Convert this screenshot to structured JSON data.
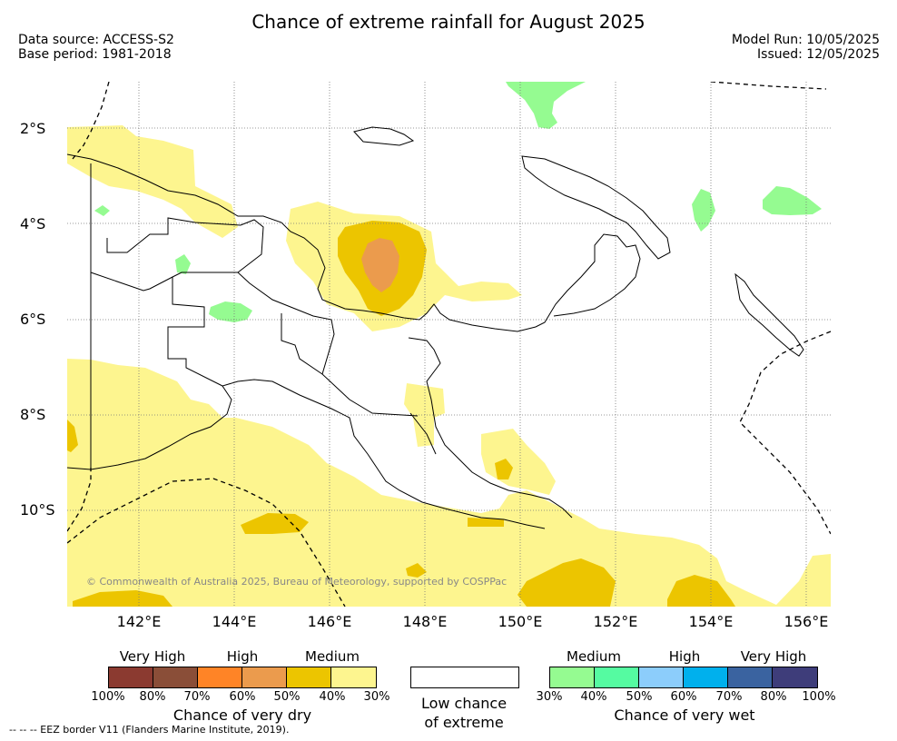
{
  "title": "Chance of extreme rainfall for August 2025",
  "data_source": "Data source: ACCESS-S2",
  "base_period": "Base period: 1981-2018",
  "model_run": "Model Run: 10/05/2025",
  "issued": "Issued: 12/05/2025",
  "copyright": "© Commonwealth of Australia 2025, Bureau of Meteorology, supported by COSPPac",
  "eez_note": "--  --  -- EEZ border V11 (Flanders Marine Institute, 2019).",
  "lat_labels": [
    "2°S",
    "4°S",
    "6°S",
    "8°S",
    "10°S"
  ],
  "lon_labels": [
    "142°E",
    "144°E",
    "146°E",
    "148°E",
    "150°E",
    "152°E",
    "154°E",
    "156°E"
  ],
  "dry_legend": {
    "headers": [
      "Very High",
      "High",
      "Medium"
    ],
    "colors": [
      "#8b3a30",
      "#8a4e38",
      "#ff8426",
      "#eb9b4d",
      "#ecc500",
      "#fdf58f"
    ],
    "ticks": [
      "100%",
      "80%",
      "70%",
      "60%",
      "50%",
      "40%",
      "30%"
    ],
    "caption": "Chance of very dry"
  },
  "low_legend": {
    "caption_line1": "Low chance",
    "caption_line2": "of extreme"
  },
  "wet_legend": {
    "headers": [
      "Medium",
      "High",
      "Very High"
    ],
    "colors": [
      "#95fb91",
      "#55fba1",
      "#8ccdfb",
      "#00b0ed",
      "#3a63a0",
      "#3e3d7a"
    ],
    "ticks": [
      "30%",
      "40%",
      "50%",
      "60%",
      "70%",
      "80%",
      "100%"
    ],
    "caption": "Chance of very wet"
  }
}
